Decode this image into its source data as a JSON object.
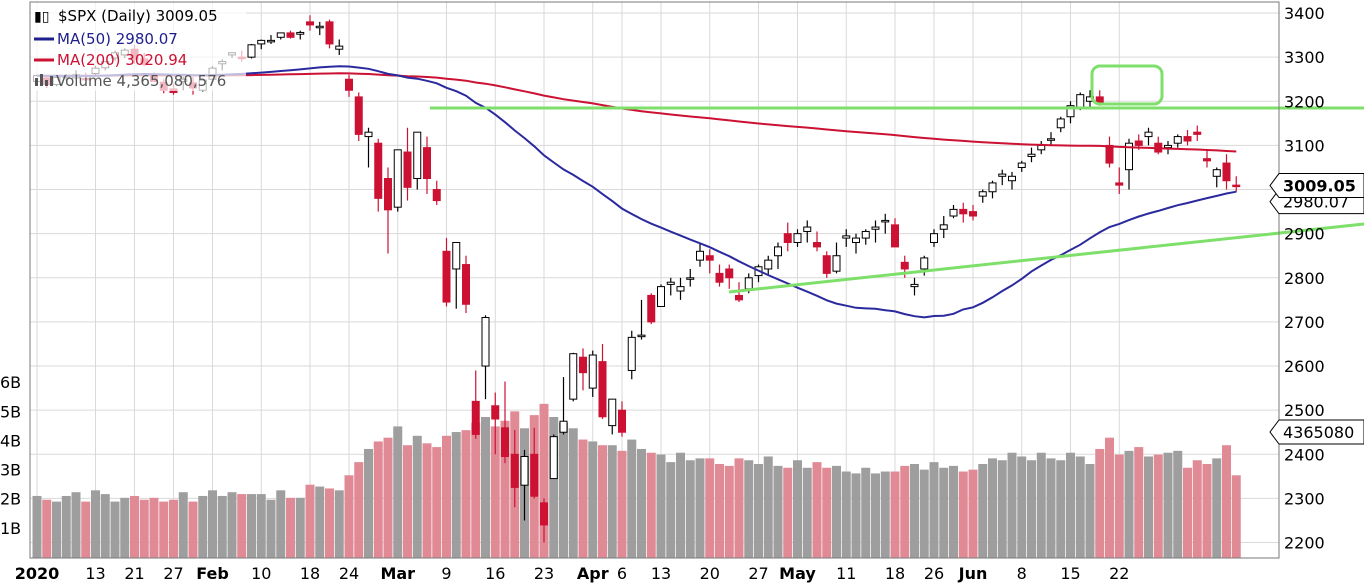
{
  "chart_data": {
    "type": "candlestick",
    "title": "$SPX (Daily) 3009.05",
    "legend": [
      {
        "label": "MA(50) 2980.07",
        "color": "#1e1e8c"
      },
      {
        "label": "MA(200) 3020.94",
        "color": "#cc1133"
      },
      {
        "label": "Volume 4,365,080,576",
        "color": "#555555"
      }
    ],
    "colors": {
      "up": "#ffffff",
      "down": "#cc1133",
      "ma50": "#2a2a9e",
      "ma200": "#cc1133",
      "vol_up": "#9e9e9e",
      "vol_down": "#e08a95",
      "trend": "#7ee06a",
      "grid": "#d9d9d9"
    },
    "y_axis": {
      "range": [
        2165,
        3425
      ],
      "ticks": [
        2200,
        2300,
        2400,
        2500,
        2600,
        2700,
        2800,
        2900,
        3000,
        3100,
        3200,
        3300,
        3400
      ]
    },
    "volume_axis": {
      "unit": "B",
      "ticks": [
        "6B",
        "5B",
        "4B",
        "3B",
        "2B",
        "1B"
      ]
    },
    "x_labels": [
      {
        "d": 0,
        "label": "2020",
        "bold": true
      },
      {
        "d": 6,
        "label": "13"
      },
      {
        "d": 10,
        "label": "21"
      },
      {
        "d": 14,
        "label": "27"
      },
      {
        "d": 18,
        "label": "Feb",
        "bold": true
      },
      {
        "d": 23,
        "label": "10"
      },
      {
        "d": 28,
        "label": "18"
      },
      {
        "d": 32,
        "label": "24"
      },
      {
        "d": 37,
        "label": "Mar",
        "bold": true
      },
      {
        "d": 42,
        "label": "9"
      },
      {
        "d": 47,
        "label": "16"
      },
      {
        "d": 52,
        "label": "23"
      },
      {
        "d": 57,
        "label": "Apr",
        "bold": true
      },
      {
        "d": 60,
        "label": "6"
      },
      {
        "d": 64,
        "label": "13"
      },
      {
        "d": 69,
        "label": "20"
      },
      {
        "d": 74,
        "label": "27"
      },
      {
        "d": 78,
        "label": "May",
        "bold": true
      },
      {
        "d": 83,
        "label": "11"
      },
      {
        "d": 88,
        "label": "18"
      },
      {
        "d": 92,
        "label": "26"
      },
      {
        "d": 96,
        "label": "Jun",
        "bold": true
      },
      {
        "d": 101,
        "label": "8"
      },
      {
        "d": 106,
        "label": "15"
      },
      {
        "d": 111,
        "label": "22"
      }
    ],
    "last_price_label": "3009.05",
    "ma50_label": "2980.07",
    "last_volume_label": "4365080",
    "candles": [
      [
        3245,
        3260,
        3238,
        3258,
        3.3
      ],
      [
        3253,
        3256,
        3230,
        3238,
        3.1
      ],
      [
        3238,
        3256,
        3234,
        3254,
        3.0
      ],
      [
        3257,
        3262,
        3247,
        3257,
        3.3
      ],
      [
        3253,
        3270,
        3250,
        3260,
        3.5
      ],
      [
        3252,
        3265,
        3245,
        3250,
        3.0
      ],
      [
        3263,
        3280,
        3260,
        3275,
        3.6
      ],
      [
        3276,
        3290,
        3270,
        3290,
        3.4
      ],
      [
        3298,
        3315,
        3292,
        3310,
        3.0
      ],
      [
        3305,
        3320,
        3298,
        3316,
        3.2
      ],
      [
        3318,
        3328,
        3285,
        3295,
        3.3
      ],
      [
        3296,
        3310,
        3280,
        3283,
        3.1
      ],
      [
        3258,
        3265,
        3245,
        3245,
        3.2
      ],
      [
        3243,
        3250,
        3218,
        3225,
        3.0
      ],
      [
        3228,
        3240,
        3215,
        3220,
        3.1
      ],
      [
        3245,
        3255,
        3225,
        3250,
        3.5
      ],
      [
        3242,
        3255,
        3215,
        3230,
        3.0
      ],
      [
        3225,
        3248,
        3222,
        3248,
        3.3
      ],
      [
        3250,
        3280,
        3245,
        3275,
        3.6
      ],
      [
        3285,
        3295,
        3270,
        3290,
        3.3
      ],
      [
        3305,
        3312,
        3298,
        3310,
        3.5
      ],
      [
        3300,
        3315,
        3290,
        3298,
        3.4
      ],
      [
        3300,
        3330,
        3297,
        3328,
        3.4
      ],
      [
        3330,
        3340,
        3318,
        3338,
        3.4
      ],
      [
        3338,
        3350,
        3330,
        3338,
        3.1
      ],
      [
        3345,
        3355,
        3340,
        3355,
        3.6
      ],
      [
        3355,
        3360,
        3342,
        3345,
        3.2
      ],
      [
        3352,
        3360,
        3340,
        3356,
        3.2
      ],
      [
        3380,
        3395,
        3360,
        3373,
        3.9
      ],
      [
        3370,
        3380,
        3350,
        3370,
        3.8
      ],
      [
        3380,
        3385,
        3320,
        3330,
        3.7
      ],
      [
        3318,
        3340,
        3305,
        3325,
        3.6
      ],
      [
        3250,
        3260,
        3210,
        3225,
        4.4
      ],
      [
        3210,
        3220,
        3110,
        3125,
        5.1
      ],
      [
        3120,
        3140,
        3050,
        3130,
        5.8
      ],
      [
        3105,
        3115,
        2950,
        2980,
        6.2
      ],
      [
        3025,
        3050,
        2855,
        2954,
        6.4
      ],
      [
        2960,
        3090,
        2950,
        3090,
        7.0
      ],
      [
        3085,
        3140,
        2975,
        3005,
        6.0
      ],
      [
        3025,
        3130,
        3000,
        3130,
        6.5
      ],
      [
        3095,
        3120,
        2990,
        3025,
        6.1
      ],
      [
        3000,
        3020,
        2965,
        2975,
        5.9
      ],
      [
        2860,
        2890,
        2735,
        2745,
        6.5
      ],
      [
        2820,
        2880,
        2730,
        2880,
        6.7
      ],
      [
        2830,
        2850,
        2720,
        2740,
        6.8
      ],
      [
        2520,
        2590,
        2435,
        2445,
        7.2
      ],
      [
        2600,
        2715,
        2525,
        2710,
        7.5
      ],
      [
        2510,
        2540,
        2400,
        2480,
        7.0
      ],
      [
        2460,
        2565,
        2380,
        2395,
        7.3
      ],
      [
        2400,
        2455,
        2280,
        2325,
        7.8
      ],
      [
        2330,
        2410,
        2250,
        2395,
        6.9
      ],
      [
        2400,
        2460,
        2300,
        2305,
        7.6
      ],
      [
        2290,
        2300,
        2200,
        2240,
        8.2
      ],
      [
        2345,
        2445,
        2350,
        2440,
        7.5
      ],
      [
        2450,
        2575,
        2445,
        2475,
        7.2
      ],
      [
        2525,
        2630,
        2520,
        2628,
        6.9
      ],
      [
        2620,
        2640,
        2545,
        2585,
        6.3
      ],
      [
        2550,
        2635,
        2530,
        2625,
        6.2
      ],
      [
        2610,
        2650,
        2480,
        2485,
        6.0
      ],
      [
        2465,
        2525,
        2445,
        2525,
        6.0
      ],
      [
        2500,
        2520,
        2440,
        2450,
        5.7
      ],
      [
        2590,
        2680,
        2570,
        2665,
        6.3
      ],
      [
        2670,
        2750,
        2660,
        2670,
        5.8
      ],
      [
        2760,
        2765,
        2695,
        2700,
        5.6
      ],
      [
        2735,
        2785,
        2740,
        2780,
        5.5
      ],
      [
        2785,
        2800,
        2760,
        2790,
        5.1
      ],
      [
        2770,
        2800,
        2750,
        2780,
        5.6
      ],
      [
        2800,
        2820,
        2780,
        2800,
        5.2
      ],
      [
        2840,
        2880,
        2825,
        2860,
        5.3
      ],
      [
        2850,
        2865,
        2810,
        2840,
        5.3
      ],
      [
        2810,
        2830,
        2780,
        2790,
        5.0
      ],
      [
        2820,
        2830,
        2775,
        2800,
        4.9
      ],
      [
        2760,
        2790,
        2745,
        2750,
        5.3
      ],
      [
        2775,
        2810,
        2765,
        2800,
        5.2
      ],
      [
        2805,
        2830,
        2790,
        2825,
        5.0
      ],
      [
        2820,
        2850,
        2805,
        2840,
        5.4
      ],
      [
        2850,
        2880,
        2820,
        2870,
        4.9
      ],
      [
        2900,
        2925,
        2860,
        2880,
        4.8
      ],
      [
        2880,
        2910,
        2870,
        2900,
        5.2
      ],
      [
        2905,
        2930,
        2880,
        2915,
        4.8
      ],
      [
        2880,
        2905,
        2860,
        2870,
        5.1
      ],
      [
        2850,
        2860,
        2800,
        2810,
        4.8
      ],
      [
        2815,
        2880,
        2810,
        2850,
        4.9
      ],
      [
        2890,
        2910,
        2870,
        2895,
        4.6
      ],
      [
        2880,
        2900,
        2855,
        2890,
        4.5
      ],
      [
        2890,
        2910,
        2875,
        2905,
        4.8
      ],
      [
        2910,
        2930,
        2880,
        2915,
        4.5
      ],
      [
        2930,
        2945,
        2900,
        2930,
        4.6
      ],
      [
        2920,
        2935,
        2870,
        2870,
        4.6
      ],
      [
        2835,
        2850,
        2800,
        2820,
        4.9
      ],
      [
        2780,
        2800,
        2760,
        2785,
        5.0
      ],
      [
        2820,
        2850,
        2805,
        2845,
        4.7
      ],
      [
        2880,
        2910,
        2870,
        2900,
        5.1
      ],
      [
        2910,
        2940,
        2890,
        2920,
        4.8
      ],
      [
        2940,
        2965,
        2935,
        2955,
        4.9
      ],
      [
        2955,
        2970,
        2925,
        2945,
        4.6
      ],
      [
        2950,
        2965,
        2930,
        2940,
        4.7
      ],
      [
        2985,
        3000,
        2970,
        2995,
        5.0
      ],
      [
        2995,
        3020,
        2980,
        3015,
        5.3
      ],
      [
        3030,
        3045,
        3010,
        3035,
        5.2
      ],
      [
        3020,
        3040,
        3000,
        3030,
        5.6
      ],
      [
        3050,
        3065,
        3040,
        3060,
        5.4
      ],
      [
        3075,
        3095,
        3062,
        3080,
        5.2
      ],
      [
        3090,
        3110,
        3080,
        3100,
        5.6
      ],
      [
        3115,
        3130,
        3100,
        3115,
        5.3
      ],
      [
        3140,
        3165,
        3130,
        3160,
        5.2
      ],
      [
        3165,
        3200,
        3150,
        3190,
        5.6
      ],
      [
        3185,
        3220,
        3180,
        3215,
        5.4
      ],
      [
        3200,
        3225,
        3185,
        3210,
        5.0
      ],
      [
        3210,
        3225,
        3190,
        3195,
        5.8
      ],
      [
        3100,
        3120,
        3050,
        3060,
        6.4
      ],
      [
        3015,
        3050,
        2990,
        3010,
        5.5
      ],
      [
        3045,
        3115,
        3000,
        3105,
        5.7
      ],
      [
        3110,
        3125,
        3090,
        3100,
        5.9
      ],
      [
        3120,
        3140,
        3100,
        3130,
        5.4
      ],
      [
        3105,
        3120,
        3080,
        3085,
        5.5
      ],
      [
        3095,
        3110,
        3080,
        3100,
        5.6
      ],
      [
        3105,
        3125,
        3095,
        3120,
        5.7
      ],
      [
        3120,
        3135,
        3100,
        3110,
        4.8
      ],
      [
        3130,
        3145,
        3110,
        3125,
        5.2
      ],
      [
        3070,
        3090,
        3050,
        3065,
        5.0
      ],
      [
        3030,
        3050,
        3005,
        3045,
        5.3
      ],
      [
        3060,
        3080,
        3000,
        3020,
        6.0
      ],
      [
        3010,
        3030,
        2995,
        3009,
        4.4
      ]
    ]
  }
}
